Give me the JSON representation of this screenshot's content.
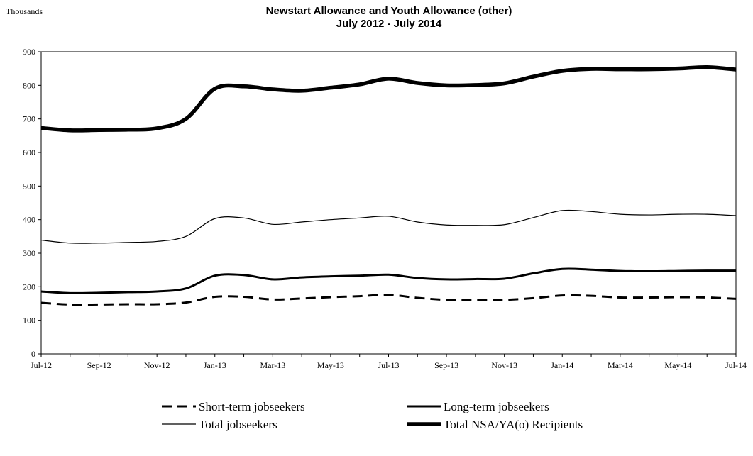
{
  "chart_data": {
    "type": "line",
    "title": "Newstart Allowance and Youth Allowance (other)",
    "subtitle": "July 2012 - July 2014",
    "ylabel": "Thousands",
    "ylim": [
      0,
      900
    ],
    "yticks": [
      0,
      100,
      200,
      300,
      400,
      500,
      600,
      700,
      800,
      900
    ],
    "x": [
      "Jul-12",
      "Aug-12",
      "Sep-12",
      "Oct-12",
      "Nov-12",
      "Dec-12",
      "Jan-13",
      "Feb-13",
      "Mar-13",
      "Apr-13",
      "May-13",
      "Jun-13",
      "Jul-13",
      "Aug-13",
      "Sep-13",
      "Oct-13",
      "Nov-13",
      "Dec-13",
      "Jan-14",
      "Feb-14",
      "Mar-14",
      "Apr-14",
      "May-14",
      "Jun-14",
      "Jul-14"
    ],
    "xtick_labels": [
      "Jul-12",
      "Sep-12",
      "Nov-12",
      "Jan-13",
      "Mar-13",
      "May-13",
      "Jul-13",
      "Sep-13",
      "Nov-13",
      "Jan-14",
      "Mar-14",
      "May-14",
      "Jul-14"
    ],
    "grid": false,
    "legend_position": "bottom",
    "series": [
      {
        "name": "Short-term jobseekers",
        "style": "dashed",
        "color": "#000000",
        "values": [
          152,
          147,
          147,
          148,
          148,
          153,
          170,
          170,
          162,
          165,
          169,
          172,
          176,
          167,
          161,
          160,
          161,
          166,
          174,
          173,
          168,
          168,
          169,
          168,
          164
        ]
      },
      {
        "name": "Long-term jobseekers",
        "style": "medium",
        "color": "#000000",
        "values": [
          186,
          181,
          182,
          184,
          186,
          195,
          233,
          235,
          222,
          228,
          231,
          233,
          236,
          226,
          222,
          223,
          224,
          240,
          253,
          251,
          247,
          246,
          247,
          248,
          248
        ]
      },
      {
        "name": "Total jobseekers",
        "style": "thin",
        "color": "#000000",
        "values": [
          339,
          330,
          330,
          332,
          335,
          350,
          403,
          405,
          386,
          393,
          400,
          405,
          410,
          393,
          384,
          383,
          385,
          406,
          427,
          424,
          416,
          414,
          416,
          416,
          412
        ]
      },
      {
        "name": "Total NSA/YA(o) Recipients",
        "style": "thick",
        "color": "#000000",
        "values": [
          673,
          666,
          667,
          668,
          672,
          700,
          790,
          797,
          788,
          784,
          793,
          803,
          820,
          807,
          800,
          801,
          806,
          826,
          843,
          849,
          848,
          848,
          850,
          854,
          847
        ]
      }
    ]
  }
}
